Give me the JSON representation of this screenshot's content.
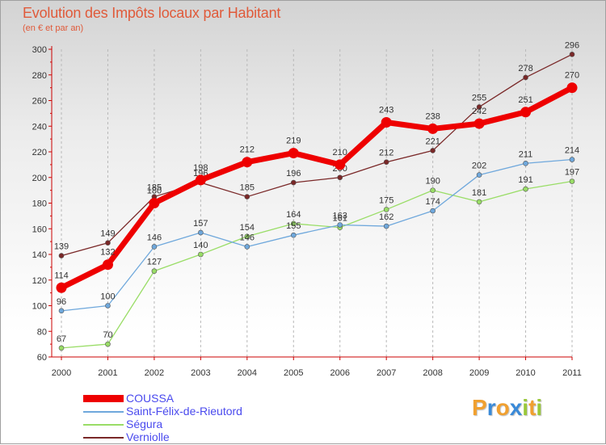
{
  "title": "Evolution des Impôts locaux par Habitant",
  "subtitle": "(en € et par an)",
  "brand": {
    "letters": [
      "P",
      "r",
      "o",
      "x",
      "i",
      "t",
      "i"
    ],
    "colors": [
      "#f0a030",
      "#3a8ad8",
      "#f0a030",
      "#3a8ad8",
      "#9ac83a",
      "#f0a030",
      "#9ac83a"
    ]
  },
  "chart_data": {
    "type": "line",
    "title": "Evolution des Impôts locaux par Habitant",
    "subtitle": "(en € et par an)",
    "xlabel": "",
    "ylabel": "",
    "x": [
      "2000",
      "2001",
      "2002",
      "2003",
      "2004",
      "2005",
      "2006",
      "2007",
      "2008",
      "2009",
      "2010",
      "2011"
    ],
    "ylim": [
      60,
      300
    ],
    "yticks": [
      60,
      80,
      100,
      120,
      140,
      160,
      180,
      200,
      220,
      240,
      260,
      280,
      300
    ],
    "grid": "vertical dashed",
    "legend_position": "bottom-left",
    "series": [
      {
        "name": "Verniolle",
        "color": "#7a2828",
        "values": [
          139,
          149,
          185,
          196,
          185,
          196,
          200,
          212,
          221,
          255,
          278,
          296
        ],
        "width": "thin"
      },
      {
        "name": "Ségura",
        "color": "#99dd66",
        "values": [
          67,
          70,
          127,
          140,
          154,
          164,
          161,
          175,
          190,
          181,
          191,
          197
        ],
        "width": "thin"
      },
      {
        "name": "Saint-Félix-de-Rieutord",
        "color": "#6fa8dc",
        "values": [
          96,
          100,
          146,
          157,
          146,
          155,
          163,
          162,
          174,
          202,
          211,
          214
        ],
        "width": "thin"
      },
      {
        "name": "COUSSA",
        "color": "#ee0000",
        "values": [
          114,
          132,
          180,
          198,
          212,
          219,
          210,
          243,
          238,
          242,
          251,
          270
        ],
        "width": "thick"
      }
    ],
    "legend": [
      "COUSSA",
      "Saint-Félix-de-Rieutord",
      "Ségura",
      "Verniolle"
    ]
  }
}
